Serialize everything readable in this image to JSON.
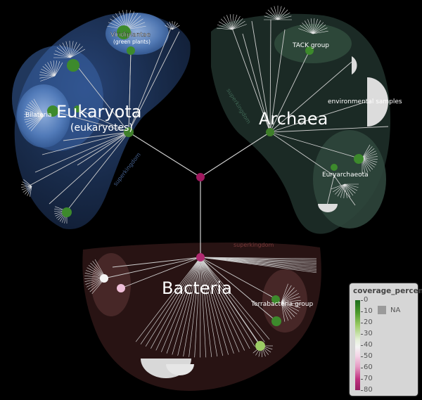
{
  "tree": {
    "kingdoms": [
      {
        "label": "Eukaryota",
        "common": "(eukaryotes)",
        "rank": "superkingdom"
      },
      {
        "label": "Archaea",
        "rank": "superkingdom"
      },
      {
        "label": "Bacteria",
        "rank": "superkingdom"
      }
    ],
    "clades": [
      {
        "label": "Viridiplantae",
        "common": "(green plants)"
      },
      {
        "label": "Bilateria"
      },
      {
        "label": "TACK group"
      },
      {
        "label": "environmental samples"
      },
      {
        "label": "Euryarchaeota"
      },
      {
        "label": "Terrabacteria group"
      }
    ]
  },
  "legend": {
    "title": "coverage_percent",
    "ticks": [
      "0",
      "10",
      "20",
      "30",
      "40",
      "50",
      "60",
      "70",
      "80"
    ],
    "na_label": "NA",
    "colors": {
      "low": "#1b6b1b",
      "mid": "#f4f4f4",
      "high": "#961f62",
      "na": "#9a9a9a"
    }
  }
}
